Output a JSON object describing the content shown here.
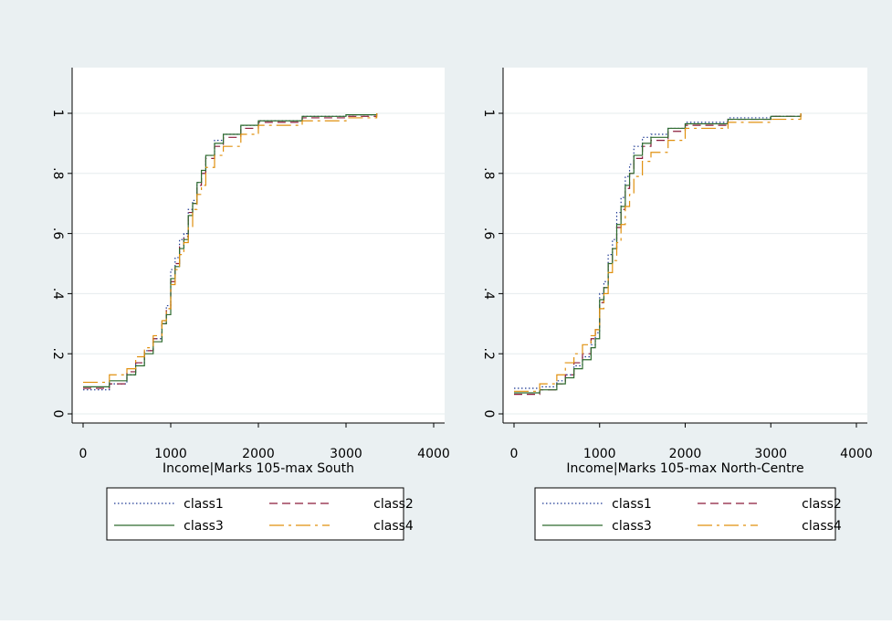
{
  "colors": {
    "outer_background": "#eaf0f2",
    "plot_background": "#ffffff",
    "gridline": "#e6ecee",
    "axis": "#000000"
  },
  "chart_data": [
    {
      "type": "line",
      "xlabel": "Income|Marks 105-max South",
      "ylabel": "",
      "xlim": [
        0,
        4000
      ],
      "ylim": [
        0,
        1
      ],
      "x_ticks": [
        0,
        1000,
        2000,
        3000,
        4000
      ],
      "x_tick_labels": [
        "0",
        "1000",
        "2000",
        "3000",
        "4000"
      ],
      "y_ticks": [
        0,
        0.2,
        0.4,
        0.6,
        0.8,
        1
      ],
      "y_tick_labels": [
        "0",
        ".2",
        ".4",
        ".6",
        ".8",
        "1"
      ],
      "grid": true,
      "legend_position": "bottom",
      "series": [
        {
          "name": "class1",
          "color": "#1f3a93",
          "dash": "dotted",
          "x": [
            0,
            300,
            500,
            600,
            700,
            800,
            900,
            950,
            1000,
            1050,
            1100,
            1150,
            1200,
            1250,
            1300,
            1350,
            1400,
            1500,
            1600,
            1800,
            2000,
            2500,
            3000,
            3350
          ],
          "y": [
            0.08,
            0.1,
            0.13,
            0.17,
            0.21,
            0.25,
            0.31,
            0.36,
            0.48,
            0.52,
            0.58,
            0.6,
            0.68,
            0.71,
            0.77,
            0.8,
            0.86,
            0.91,
            0.93,
            0.96,
            0.975,
            0.99,
            0.995,
            1
          ]
        },
        {
          "name": "class2",
          "color": "#8b1a3a",
          "dash": "dashed",
          "x": [
            0,
            300,
            500,
            600,
            700,
            800,
            900,
            950,
            1000,
            1050,
            1100,
            1150,
            1200,
            1250,
            1300,
            1350,
            1400,
            1500,
            1600,
            1800,
            2000,
            2500,
            3000,
            3350
          ],
          "y": [
            0.085,
            0.1,
            0.14,
            0.17,
            0.21,
            0.25,
            0.3,
            0.35,
            0.44,
            0.5,
            0.56,
            0.59,
            0.67,
            0.7,
            0.76,
            0.8,
            0.85,
            0.89,
            0.92,
            0.95,
            0.97,
            0.985,
            0.99,
            1
          ]
        },
        {
          "name": "class3",
          "color": "#2e6b2e",
          "dash": "solid",
          "x": [
            0,
            300,
            500,
            600,
            700,
            800,
            900,
            950,
            1000,
            1050,
            1100,
            1150,
            1200,
            1250,
            1300,
            1350,
            1400,
            1500,
            1600,
            1800,
            2000,
            2500,
            3000,
            3350
          ],
          "y": [
            0.09,
            0.11,
            0.13,
            0.16,
            0.2,
            0.24,
            0.3,
            0.33,
            0.45,
            0.49,
            0.55,
            0.58,
            0.66,
            0.7,
            0.77,
            0.81,
            0.86,
            0.9,
            0.93,
            0.96,
            0.975,
            0.99,
            0.995,
            1
          ]
        },
        {
          "name": "class4",
          "color": "#e0900e",
          "dash": "longdash",
          "x": [
            0,
            300,
            500,
            600,
            700,
            800,
            900,
            950,
            1000,
            1050,
            1100,
            1150,
            1200,
            1250,
            1300,
            1350,
            1400,
            1500,
            1600,
            1800,
            2000,
            2500,
            3000,
            3350
          ],
          "y": [
            0.105,
            0.13,
            0.15,
            0.19,
            0.22,
            0.26,
            0.31,
            0.35,
            0.43,
            0.48,
            0.53,
            0.57,
            0.62,
            0.68,
            0.73,
            0.76,
            0.82,
            0.86,
            0.89,
            0.93,
            0.96,
            0.975,
            0.985,
            1
          ]
        }
      ]
    },
    {
      "type": "line",
      "xlabel": "Income|Marks 105-max North-Centre",
      "ylabel": "",
      "xlim": [
        0,
        4000
      ],
      "ylim": [
        0,
        1
      ],
      "x_ticks": [
        0,
        1000,
        2000,
        3000,
        4000
      ],
      "x_tick_labels": [
        "0",
        "1000",
        "2000",
        "3000",
        "4000"
      ],
      "y_ticks": [
        0,
        0.2,
        0.4,
        0.6,
        0.8,
        1
      ],
      "y_tick_labels": [
        "0",
        ".2",
        ".4",
        ".6",
        ".8",
        "1"
      ],
      "grid": true,
      "legend_position": "bottom",
      "series": [
        {
          "name": "class1",
          "color": "#1f3a93",
          "dash": "dotted",
          "x": [
            0,
            300,
            500,
            600,
            700,
            800,
            900,
            950,
            1000,
            1050,
            1100,
            1150,
            1200,
            1250,
            1300,
            1350,
            1400,
            1500,
            1600,
            1800,
            2000,
            2500,
            3000,
            3350
          ],
          "y": [
            0.085,
            0.09,
            0.11,
            0.13,
            0.16,
            0.19,
            0.23,
            0.27,
            0.4,
            0.44,
            0.53,
            0.58,
            0.67,
            0.72,
            0.79,
            0.83,
            0.89,
            0.92,
            0.93,
            0.95,
            0.97,
            0.985,
            0.99,
            1
          ]
        },
        {
          "name": "class2",
          "color": "#8b1a3a",
          "dash": "dashed",
          "x": [
            0,
            300,
            500,
            600,
            700,
            800,
            900,
            950,
            1000,
            1050,
            1100,
            1150,
            1200,
            1250,
            1300,
            1350,
            1400,
            1500,
            1600,
            1800,
            2000,
            2500,
            3000,
            3350
          ],
          "y": [
            0.065,
            0.08,
            0.1,
            0.13,
            0.17,
            0.2,
            0.25,
            0.28,
            0.37,
            0.42,
            0.5,
            0.55,
            0.62,
            0.68,
            0.75,
            0.8,
            0.85,
            0.89,
            0.91,
            0.94,
            0.96,
            0.98,
            0.99,
            1
          ]
        },
        {
          "name": "class3",
          "color": "#2e6b2e",
          "dash": "solid",
          "x": [
            0,
            300,
            500,
            600,
            700,
            800,
            900,
            950,
            1000,
            1050,
            1100,
            1150,
            1200,
            1250,
            1300,
            1350,
            1400,
            1500,
            1600,
            1800,
            2000,
            2500,
            3000,
            3350
          ],
          "y": [
            0.07,
            0.08,
            0.1,
            0.12,
            0.15,
            0.18,
            0.22,
            0.25,
            0.38,
            0.42,
            0.5,
            0.55,
            0.63,
            0.69,
            0.76,
            0.8,
            0.86,
            0.9,
            0.92,
            0.95,
            0.965,
            0.98,
            0.99,
            1
          ]
        },
        {
          "name": "class4",
          "color": "#e0900e",
          "dash": "longdash",
          "x": [
            0,
            300,
            500,
            600,
            700,
            800,
            900,
            950,
            1000,
            1050,
            1100,
            1150,
            1200,
            1250,
            1300,
            1350,
            1400,
            1500,
            1600,
            1800,
            2000,
            2500,
            3000,
            3350
          ],
          "y": [
            0.075,
            0.1,
            0.13,
            0.17,
            0.2,
            0.23,
            0.26,
            0.28,
            0.35,
            0.4,
            0.47,
            0.51,
            0.57,
            0.63,
            0.69,
            0.73,
            0.79,
            0.84,
            0.87,
            0.91,
            0.95,
            0.97,
            0.98,
            1
          ]
        }
      ]
    }
  ]
}
